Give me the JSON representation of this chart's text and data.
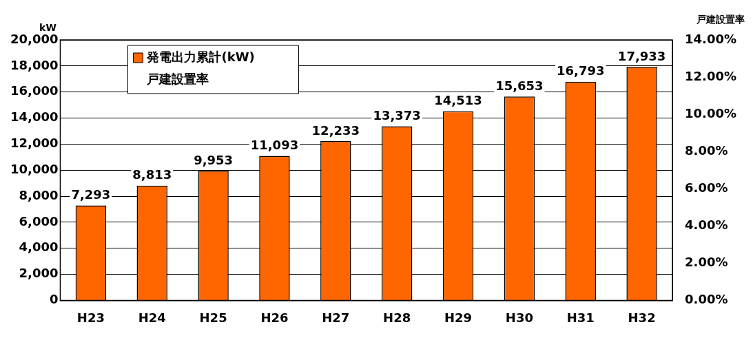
{
  "chart_data": {
    "type": "bar",
    "ylabel": "kW",
    "y2label": "戸建設置率",
    "categories": [
      "H23",
      "H24",
      "H25",
      "H26",
      "H27",
      "H28",
      "H29",
      "H30",
      "H31",
      "H32"
    ],
    "series": [
      {
        "name": "発電出力累計(kW)",
        "color": "#ff6600",
        "values": [
          7293,
          8813,
          9953,
          11093,
          12233,
          13373,
          14513,
          15653,
          16793,
          17933
        ],
        "value_labels": [
          "7,293",
          "8,813",
          "9,953",
          "11,093",
          "12,233",
          "13,373",
          "14,513",
          "15,653",
          "16,793",
          "17,933"
        ]
      },
      {
        "name": "戸建設置率",
        "type": "line",
        "values": [
          null,
          null,
          null,
          null,
          null,
          null,
          null,
          null,
          null,
          null
        ]
      }
    ],
    "ylim": [
      0,
      20000
    ],
    "yticks": [
      {
        "value": 0,
        "label": "0"
      },
      {
        "value": 2000,
        "label": "2,000"
      },
      {
        "value": 4000,
        "label": "4,000"
      },
      {
        "value": 6000,
        "label": "6,000"
      },
      {
        "value": 8000,
        "label": "8,000"
      },
      {
        "value": 10000,
        "label": "10,000"
      },
      {
        "value": 12000,
        "label": "12,000"
      },
      {
        "value": 14000,
        "label": "14,000"
      },
      {
        "value": 16000,
        "label": "16,000"
      },
      {
        "value": 18000,
        "label": "18,000"
      },
      {
        "value": 20000,
        "label": "20,000"
      }
    ],
    "y2lim": [
      0,
      14
    ],
    "y2ticks": [
      {
        "value": 0,
        "label": "0.00%"
      },
      {
        "value": 2,
        "label": "2.00%"
      },
      {
        "value": 4,
        "label": "4.00%"
      },
      {
        "value": 6,
        "label": "6.00%"
      },
      {
        "value": 8,
        "label": "8.00%"
      },
      {
        "value": 10,
        "label": "10.00%"
      },
      {
        "value": 12,
        "label": "12.00%"
      },
      {
        "value": 14,
        "label": "14.00%"
      }
    ],
    "grid": "y",
    "legend": "top left"
  }
}
